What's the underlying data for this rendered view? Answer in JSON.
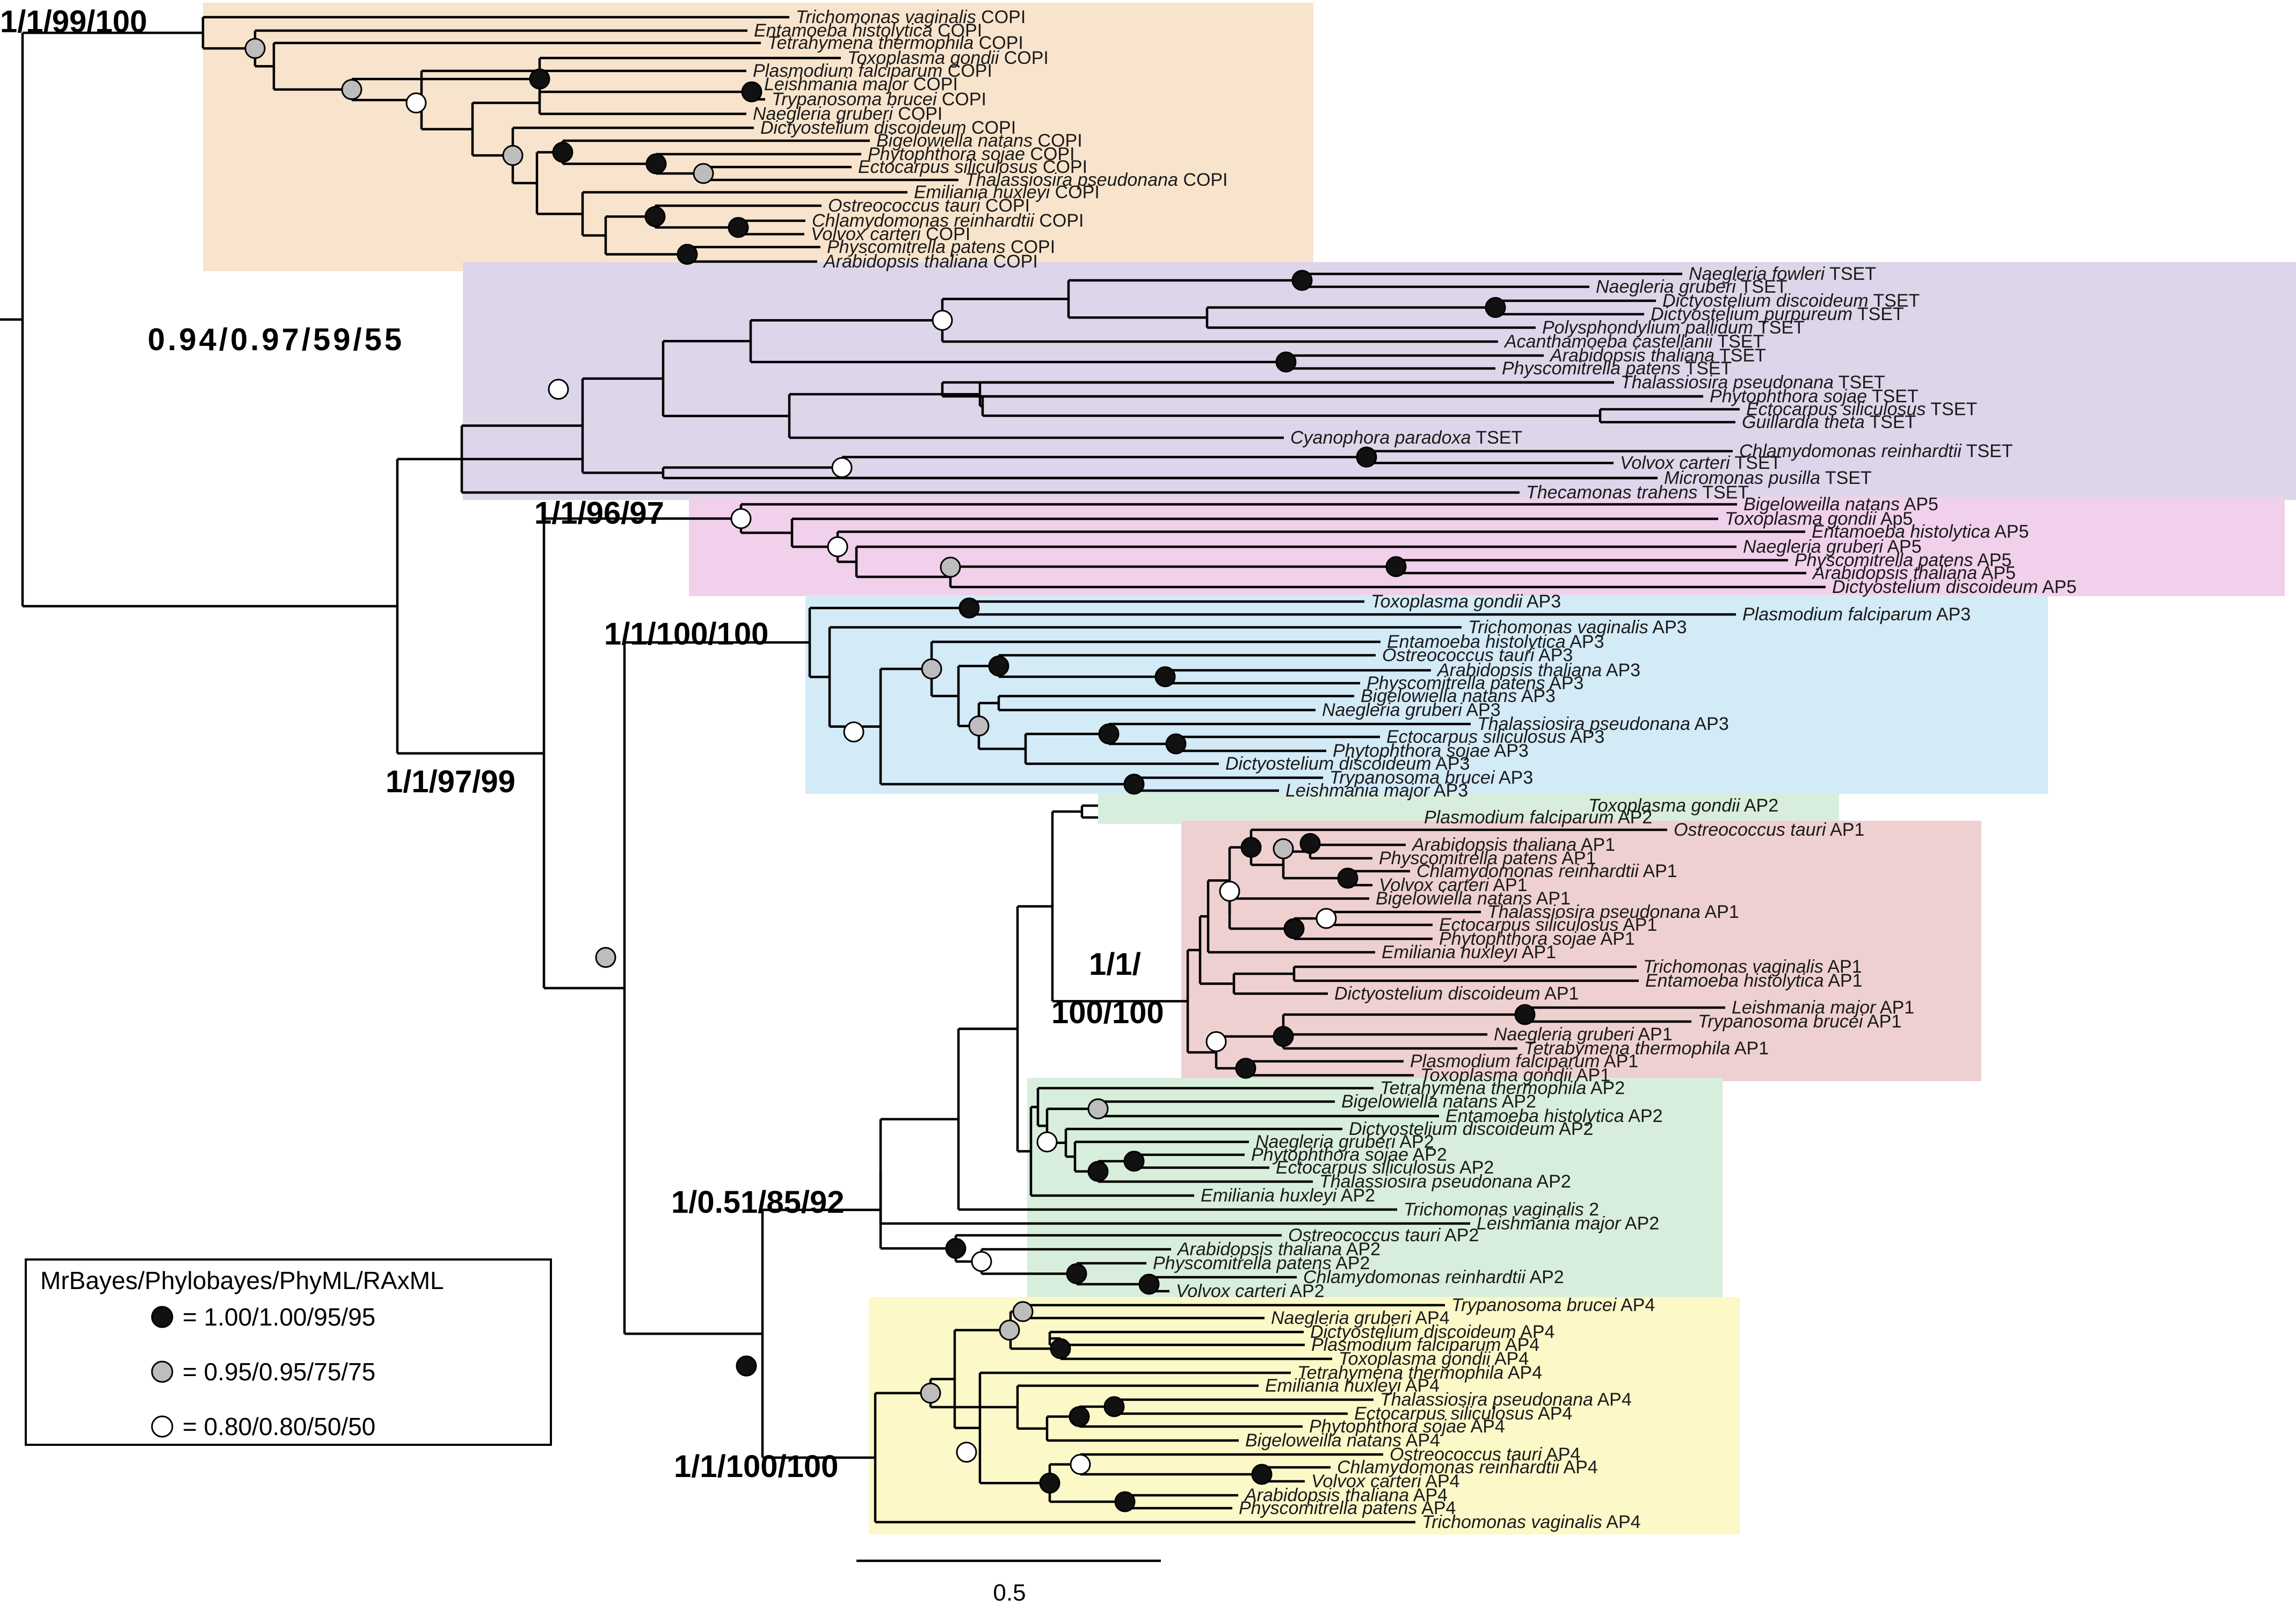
{
  "legend": {
    "title": "MrBayes/Phylobayes/PhyML/RAxML",
    "items": [
      {
        "fill": "#111111",
        "label": "= 1.00/1.00/95/95"
      },
      {
        "fill": "#bdbdbd",
        "label": "= 0.95/0.95/75/75"
      },
      {
        "fill": "#ffffff",
        "label": "= 0.80/0.80/50/50"
      }
    ]
  },
  "scale_bar": {
    "label": "0.5"
  },
  "support_values": {
    "copi": "1/1/99/100",
    "tset": "0.94/0.97/59/55",
    "ap5": "1/1/96/97",
    "ap3": "1/1/100/100",
    "ap_core": "1/1/97/99",
    "ap1_line1": "1/1/",
    "ap1_line2": "100/100",
    "ap2": "1/0.51/85/92",
    "ap4": "1/1/100/100"
  },
  "colors": {
    "copi": "#f8e4cc",
    "tset": "#ddd6ea",
    "ap5": "#f0d0ea",
    "ap3": "#d3eaf7",
    "ap1": "#efd0d0",
    "ap2": "#d8eedc",
    "ap4": "#fcf8c8"
  },
  "clades": [
    {
      "id": "copi",
      "taxa": [
        {
          "name": "Trichomonas vaginalis",
          "suffix": "COPI"
        },
        {
          "name": "Entamoeba histolytica",
          "suffix": "COPI"
        },
        {
          "name": "Tetrahymena thermophila",
          "suffix": "COPI"
        },
        {
          "name": "Toxoplasma gondii",
          "suffix": "COPI"
        },
        {
          "name": "Plasmodium falciparum",
          "suffix": "COPI"
        },
        {
          "name": "Leishmania major",
          "suffix": "COPI"
        },
        {
          "name": "Trypanosoma brucei",
          "suffix": "COPI"
        },
        {
          "name": "Naegleria gruberi",
          "suffix": "COPI"
        },
        {
          "name": "Dictyostelium discoideum",
          "suffix": "COPI"
        },
        {
          "name": "Bigelowiella natans",
          "suffix": "COPI"
        },
        {
          "name": "Phytophthora sojae",
          "suffix": "COPI"
        },
        {
          "name": "Ectocarpus siliculosus",
          "suffix": "COPI"
        },
        {
          "name": "Thalassiosira pseudonana",
          "suffix": "COPI"
        },
        {
          "name": "Emiliania huxleyi",
          "suffix": "COPI"
        },
        {
          "name": "Ostreococcus tauri",
          "suffix": "COPI"
        },
        {
          "name": "Chlamydomonas reinhardtii",
          "suffix": "COPI"
        },
        {
          "name": "Volvox carteri",
          "suffix": "COPI"
        },
        {
          "name": "Physcomitrella patens",
          "suffix": "COPI"
        },
        {
          "name": "Arabidopsis thaliana",
          "suffix": "COPI"
        }
      ]
    },
    {
      "id": "tset",
      "taxa": [
        {
          "name": "Naegleria fowleri",
          "suffix": "TSET"
        },
        {
          "name": "Naegleria gruberi",
          "suffix": "TSET"
        },
        {
          "name": "Dictyostelium discoideum",
          "suffix": "TSET"
        },
        {
          "name": "Dictyostelium purpureum",
          "suffix": "TSET"
        },
        {
          "name": "Polysphondylium pallidum",
          "suffix": "TSET"
        },
        {
          "name": "Acanthamoeba castellanii",
          "suffix": "TSET"
        },
        {
          "name": "Arabidopsis thaliana",
          "suffix": "TSET"
        },
        {
          "name": "Physcomitrella patens",
          "suffix": "TSET"
        },
        {
          "name": "Thalassiosira pseudonana",
          "suffix": "TSET"
        },
        {
          "name": "Phytophthora sojae",
          "suffix": "TSET"
        },
        {
          "name": "Ectocarpus siliculosus",
          "suffix": "TSET"
        },
        {
          "name": "Guillardia theta",
          "suffix": "TSET"
        },
        {
          "name": "Cyanophora paradoxa",
          "suffix": "TSET"
        },
        {
          "name": "Chlamydomonas reinhardtii",
          "suffix": "TSET"
        },
        {
          "name": "Volvox carteri",
          "suffix": "TSET"
        },
        {
          "name": "Micromonas pusilla",
          "suffix": "TSET"
        },
        {
          "name": "Thecamonas trahens",
          "suffix": "TSET"
        }
      ]
    },
    {
      "id": "ap5",
      "taxa": [
        {
          "name": "Bigeloweilla natans",
          "suffix": "AP5"
        },
        {
          "name": "Toxoplasma gondii",
          "suffix": "Ap5"
        },
        {
          "name": "Entamoeba histolytica",
          "suffix": "AP5"
        },
        {
          "name": "Naegleria gruberi",
          "suffix": "AP5"
        },
        {
          "name": "Physcomitrella patens",
          "suffix": "AP5"
        },
        {
          "name": "Arabidopsis thaliana",
          "suffix": "AP5"
        },
        {
          "name": "Dictyostelium discoideum",
          "suffix": "AP5"
        }
      ]
    },
    {
      "id": "ap3",
      "taxa": [
        {
          "name": "Toxoplasma gondii",
          "suffix": "AP3"
        },
        {
          "name": "Plasmodium falciparum",
          "suffix": "AP3"
        },
        {
          "name": "Trichomonas vaginalis",
          "suffix": "AP3"
        },
        {
          "name": "Entamoeba histolytica",
          "suffix": "AP3"
        },
        {
          "name": "Ostreococcus tauri",
          "suffix": "AP3"
        },
        {
          "name": "Arabidopsis thaliana",
          "suffix": "AP3"
        },
        {
          "name": "Physcomitrella patens",
          "suffix": "AP3"
        },
        {
          "name": "Bigelowiella natans",
          "suffix": "AP3"
        },
        {
          "name": "Naegleria gruberi",
          "suffix": "AP3"
        },
        {
          "name": "Thalassiosira pseudonana",
          "suffix": "AP3"
        },
        {
          "name": "Ectocarpus siliculosus",
          "suffix": "AP3"
        },
        {
          "name": "Phytophthora sojae",
          "suffix": "AP3"
        },
        {
          "name": "Dictyostelium discoideum",
          "suffix": "AP3"
        },
        {
          "name": "Trypanosoma brucei",
          "suffix": "AP3"
        },
        {
          "name": "Leishmania major",
          "suffix": "AP3"
        }
      ]
    },
    {
      "id": "ap_mixed",
      "taxa": [
        {
          "name": "Toxoplasma gondii",
          "suffix": "AP2"
        },
        {
          "name": "Plasmodium falciparum",
          "suffix": "AP2"
        }
      ]
    },
    {
      "id": "ap1",
      "taxa": [
        {
          "name": "Ostreococcus tauri",
          "suffix": "AP1"
        },
        {
          "name": "Arabidopsis thaliana",
          "suffix": "AP1"
        },
        {
          "name": "Physcomitrella patens",
          "suffix": "AP1"
        },
        {
          "name": "Chlamydomonas reinhardtii",
          "suffix": "AP1"
        },
        {
          "name": "Volvox carteri",
          "suffix": "AP1"
        },
        {
          "name": "Bigelowiella natans",
          "suffix": "AP1"
        },
        {
          "name": "Thalassiosira pseudonana",
          "suffix": "AP1"
        },
        {
          "name": "Ectocarpus siliculosus",
          "suffix": "AP1"
        },
        {
          "name": "Phytophthora sojae",
          "suffix": "AP1"
        },
        {
          "name": "Emiliania huxleyi",
          "suffix": "AP1"
        },
        {
          "name": "Trichomonas vaginalis",
          "suffix": "AP1"
        },
        {
          "name": "Entamoeba histolytica",
          "suffix": "AP1"
        },
        {
          "name": "Dictyostelium discoideum",
          "suffix": "AP1"
        },
        {
          "name": "Leishmania major",
          "suffix": "AP1"
        },
        {
          "name": "Trypanosoma brucei",
          "suffix": "AP1"
        },
        {
          "name": "Naegleria gruberi",
          "suffix": "AP1"
        },
        {
          "name": "Tetrabymena thermophila",
          "suffix": "AP1"
        },
        {
          "name": "Plasmodium falciparum",
          "suffix": "AP1"
        },
        {
          "name": "Toxoplasma gondii",
          "suffix": "AP1"
        }
      ]
    },
    {
      "id": "ap2",
      "taxa": [
        {
          "name": "Tetrahymena thermophila",
          "suffix": "AP2"
        },
        {
          "name": "Bigelowiella natans",
          "suffix": "AP2"
        },
        {
          "name": "Entamoeba histolytica",
          "suffix": "AP2"
        },
        {
          "name": "Dictyostelium discoideum",
          "suffix": "AP2"
        },
        {
          "name": "Naegleria gruberi",
          "suffix": "AP2"
        },
        {
          "name": "Phytophthora sojae",
          "suffix": "AP2"
        },
        {
          "name": "Ectocarpus siliculosus",
          "suffix": "AP2"
        },
        {
          "name": "Thalassiosira pseudonana",
          "suffix": "AP2"
        },
        {
          "name": "Emiliania huxleyi",
          "suffix": "AP2"
        },
        {
          "name": "Trichomonas vaginalis",
          "suffix": "2"
        },
        {
          "name": "Leishmania major",
          "suffix": "AP2"
        },
        {
          "name": "Ostreococcus tauri",
          "suffix": "AP2"
        },
        {
          "name": "Arabidopsis thaliana",
          "suffix": "AP2"
        },
        {
          "name": "Physcomitrella patens",
          "suffix": "AP2"
        },
        {
          "name": "Chlamydomonas reinhardtii",
          "suffix": "AP2"
        },
        {
          "name": "Volvox carteri",
          "suffix": "AP2"
        }
      ]
    },
    {
      "id": "ap4",
      "taxa": [
        {
          "name": "Trypanosoma brucei",
          "suffix": "AP4"
        },
        {
          "name": "Naegleria gruberi",
          "suffix": "AP4"
        },
        {
          "name": "Dictyostelium discoideum",
          "suffix": "AP4"
        },
        {
          "name": "Plasmodium falciparum",
          "suffix": "AP4"
        },
        {
          "name": "Toxoplasma gondii",
          "suffix": "AP4"
        },
        {
          "name": "Tetrahymena thermophila",
          "suffix": "AP4"
        },
        {
          "name": "Emiliania huxleyi",
          "suffix": "AP4"
        },
        {
          "name": "Thalassiosira pseudonana",
          "suffix": "AP4"
        },
        {
          "name": "Ectocarpus siliculosus",
          "suffix": "AP4"
        },
        {
          "name": "Phytophthora sojae",
          "suffix": "AP4"
        },
        {
          "name": "Bigeloweilla natans",
          "suffix": "AP4"
        },
        {
          "name": "Ostreococcus tauri",
          "suffix": "AP4"
        },
        {
          "name": "Chlamydomonas reinhardtii",
          "suffix": "AP4"
        },
        {
          "name": "Volvox carteri",
          "suffix": "AP4"
        },
        {
          "name": "Arabidopsis thaliana",
          "suffix": "AP4"
        },
        {
          "name": "Physcomitrella patens",
          "suffix": "AP4"
        },
        {
          "name": "Trichomonas vaginalis",
          "suffix": "AP4"
        }
      ]
    }
  ]
}
